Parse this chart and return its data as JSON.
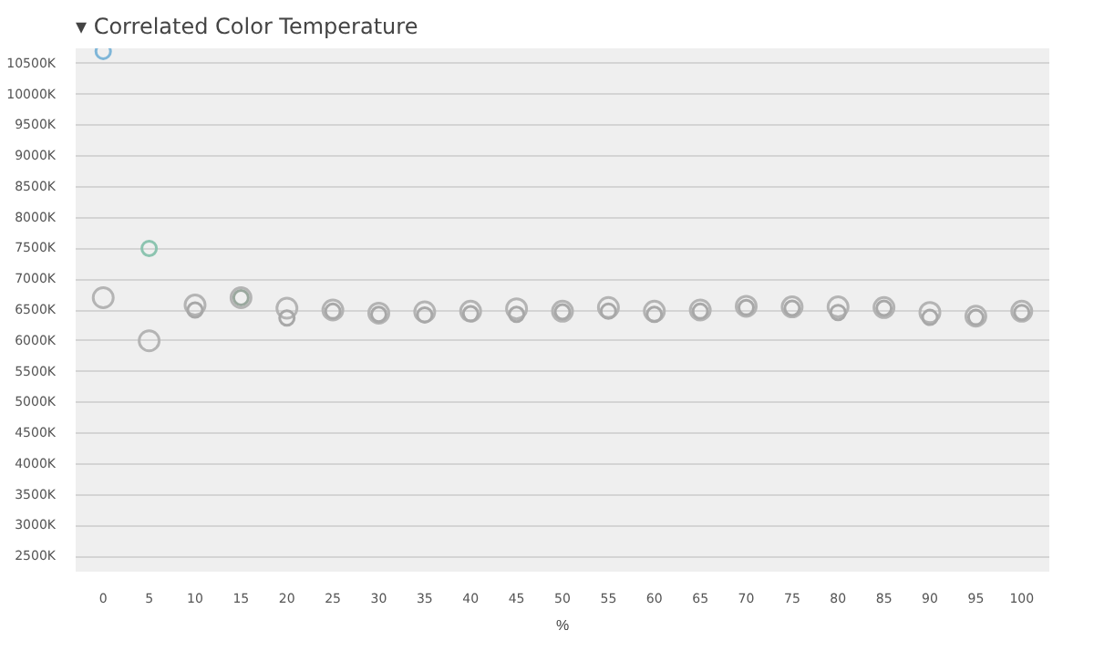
{
  "chart_data": {
    "type": "scatter",
    "title": "▾ Correlated Color Temperature",
    "xlabel": "%",
    "categories": [
      "0",
      "5",
      "10",
      "15",
      "20",
      "25",
      "30",
      "35",
      "40",
      "45",
      "50",
      "55",
      "60",
      "65",
      "70",
      "75",
      "80",
      "85",
      "90",
      "95",
      "100"
    ],
    "series": [
      {
        "color": "#b4b4b4",
        "values": [
          6700,
          6000,
          6580,
          6700,
          6530,
          6500,
          6450,
          6470,
          6480,
          6520,
          6480,
          6540,
          6480,
          6500,
          6560,
          6550,
          6550,
          6540,
          6460,
          6400,
          6480
        ]
      },
      {
        "colors": [
          "#7fb6d8",
          "#8cc4b0",
          "#a8a8a8",
          "#9aa89e",
          "#a8a8a8",
          "#a8a8a8",
          "#a8a8a8",
          "#a8a8a8",
          "#a8a8a8",
          "#a8a8a8",
          "#a8a8a8",
          "#a8a8a8",
          "#a8a8a8",
          "#a8a8a8",
          "#a8a8a8",
          "#a8a8a8",
          "#a8a8a8",
          "#a8a8a8",
          "#a8a8a8",
          "#a8a8a8",
          "#a8a8a8"
        ],
        "values": [
          10700,
          7500,
          6500,
          6700,
          6370,
          6480,
          6430,
          6420,
          6440,
          6430,
          6470,
          6480,
          6430,
          6480,
          6540,
          6530,
          6460,
          6530,
          6380,
          6380,
          6460
        ]
      }
    ],
    "ylim": [
      2250,
      10750
    ],
    "yticks": [
      {
        "value": 2500,
        "label": "2500K"
      },
      {
        "value": 3000,
        "label": "3000K"
      },
      {
        "value": 3500,
        "label": "3500K"
      },
      {
        "value": 4000,
        "label": "4000K"
      },
      {
        "value": 4500,
        "label": "4500K"
      },
      {
        "value": 5000,
        "label": "5000K"
      },
      {
        "value": 5500,
        "label": "5500K"
      },
      {
        "value": 6000,
        "label": "6000K"
      },
      {
        "value": 6500,
        "label": "6500K"
      },
      {
        "value": 7000,
        "label": "7000K"
      },
      {
        "value": 7500,
        "label": "7500K"
      },
      {
        "value": 8000,
        "label": "8000K"
      },
      {
        "value": 8500,
        "label": "8500K"
      },
      {
        "value": 9000,
        "label": "9000K"
      },
      {
        "value": 9500,
        "label": "9500K"
      },
      {
        "value": 10000,
        "label": "10000K"
      },
      {
        "value": 10500,
        "label": "10500K"
      }
    ],
    "grid": "y",
    "marker": "circle"
  }
}
